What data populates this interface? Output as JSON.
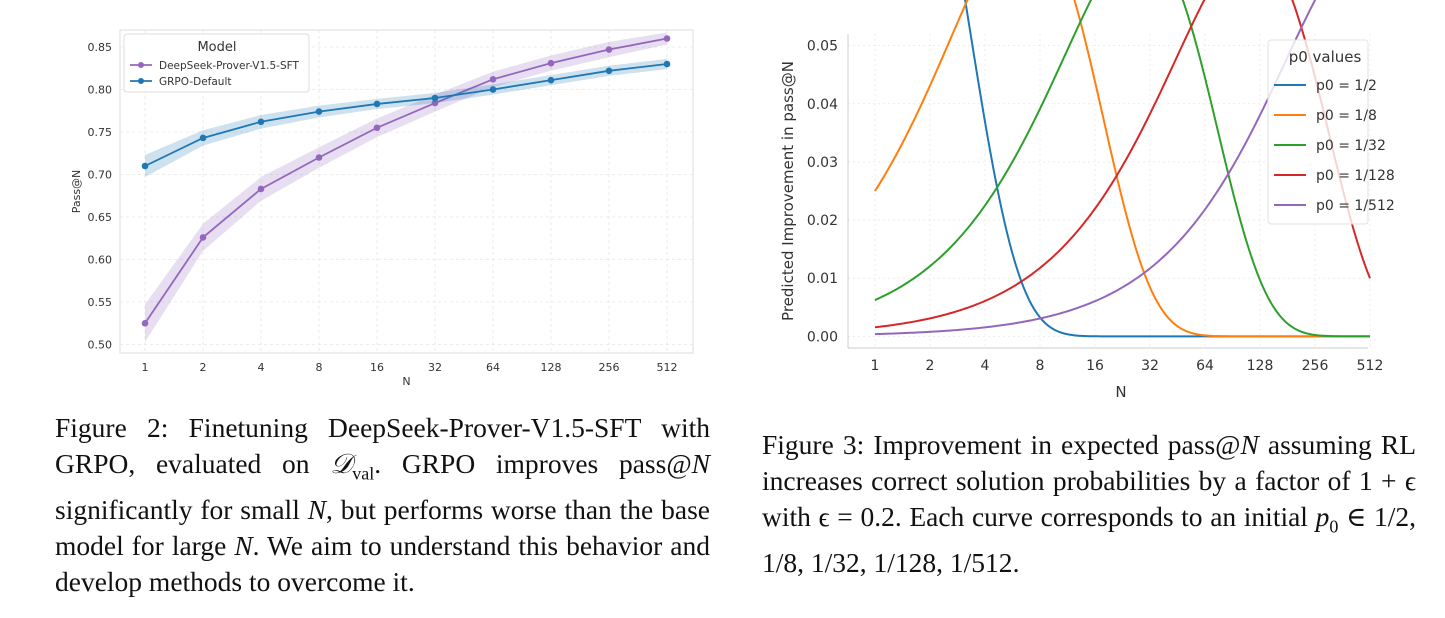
{
  "chart_data": [
    {
      "type": "line",
      "title": "",
      "xlabel": "N",
      "ylabel": "Pass@N",
      "x": [
        1,
        2,
        4,
        8,
        16,
        32,
        64,
        128,
        256,
        512
      ],
      "x_tick_labels": [
        "1",
        "2",
        "4",
        "8",
        "16",
        "32",
        "64",
        "128",
        "256",
        "512"
      ],
      "x_scale": "log2",
      "ylim": [
        0.49,
        0.87
      ],
      "y_ticks": [
        0.5,
        0.55,
        0.6,
        0.65,
        0.7,
        0.75,
        0.8,
        0.85
      ],
      "y_tick_labels": [
        "0.50",
        "0.55",
        "0.60",
        "0.65",
        "0.70",
        "0.75",
        "0.80",
        "0.85"
      ],
      "grid": true,
      "legend_title": "Model",
      "legend_position": "top-left",
      "series": [
        {
          "name": "DeepSeek-Prover-V1.5-SFT",
          "color": "#9467bd",
          "values": [
            0.525,
            0.626,
            0.683,
            0.72,
            0.755,
            0.784,
            0.812,
            0.831,
            0.847,
            0.86
          ],
          "band_half_width": [
            0.022,
            0.016,
            0.014,
            0.012,
            0.011,
            0.01,
            0.009,
            0.009,
            0.009,
            0.007
          ]
        },
        {
          "name": "GRPO-Default",
          "color": "#1f77b4",
          "values": [
            0.71,
            0.743,
            0.762,
            0.774,
            0.783,
            0.79,
            0.8,
            0.811,
            0.822,
            0.83
          ],
          "band_half_width": [
            0.013,
            0.009,
            0.008,
            0.007,
            0.006,
            0.006,
            0.006,
            0.006,
            0.006,
            0.006
          ]
        }
      ]
    },
    {
      "type": "line",
      "title": "",
      "xlabel": "N",
      "ylabel": "Predicted Improvement in pass@N",
      "x_scale": "log2",
      "x_tick_labels": [
        "1",
        "2",
        "4",
        "8",
        "16",
        "32",
        "64",
        "128",
        "256",
        "512"
      ],
      "ylim": [
        -0.002,
        0.052
      ],
      "y_ticks": [
        0.0,
        0.01,
        0.02,
        0.03,
        0.04,
        0.05
      ],
      "y_tick_labels": [
        "0.00",
        "0.01",
        "0.02",
        "0.03",
        "0.04",
        "0.05"
      ],
      "grid": true,
      "legend_title": "p0 values",
      "legend_position": "top-right",
      "epsilon": 0.2,
      "series": [
        {
          "name": "p0 = 1/2",
          "p0": 0.5,
          "color": "#1f77b4",
          "label_num": "1",
          "label_den": "2"
        },
        {
          "name": "p0 = 1/8",
          "p0": 0.125,
          "color": "#ff7f0e",
          "label_num": "1",
          "label_den": "8"
        },
        {
          "name": "p0 = 1/32",
          "p0": 0.03125,
          "color": "#2ca02c",
          "label_num": "1",
          "label_den": "32"
        },
        {
          "name": "p0 = 1/128",
          "p0": 0.0078125,
          "color": "#d62728",
          "label_num": "1",
          "label_den": "128"
        },
        {
          "name": "p0 = 1/512",
          "p0": 0.001953125,
          "color": "#9467bd",
          "label_num": "1",
          "label_den": "512"
        }
      ]
    }
  ],
  "captions": {
    "fig2": {
      "p1": "Figure 2: Finetuning DeepSeek-Prover-V1.5-SFT with GRPO, evaluated on ",
      "math1": "𝒟",
      "math1_sub": "val",
      "p2": ". GRPO improves pass@",
      "math2": "N",
      "p3": " significantly for small ",
      "math3": "N",
      "p4": ", but performs worse than the base model for large ",
      "math4": "N",
      "p5": ". We aim to understand this behavior and develop methods to overcome it."
    },
    "fig3": {
      "p1": "Figure 3: Improvement in expected pass@",
      "math1": "N",
      "p2": " assuming RL increases correct solution probabilities by a factor of ",
      "math2": "1 + ϵ",
      "p3": " with ",
      "math3": "ϵ = 0.2",
      "p4": ". Each curve corresponds to an initial ",
      "math4": "p",
      "math4_sub": "0",
      "math5": " ∈ 1/2, 1/8, 1/32, 1/128, 1/512",
      "p5": "."
    }
  }
}
